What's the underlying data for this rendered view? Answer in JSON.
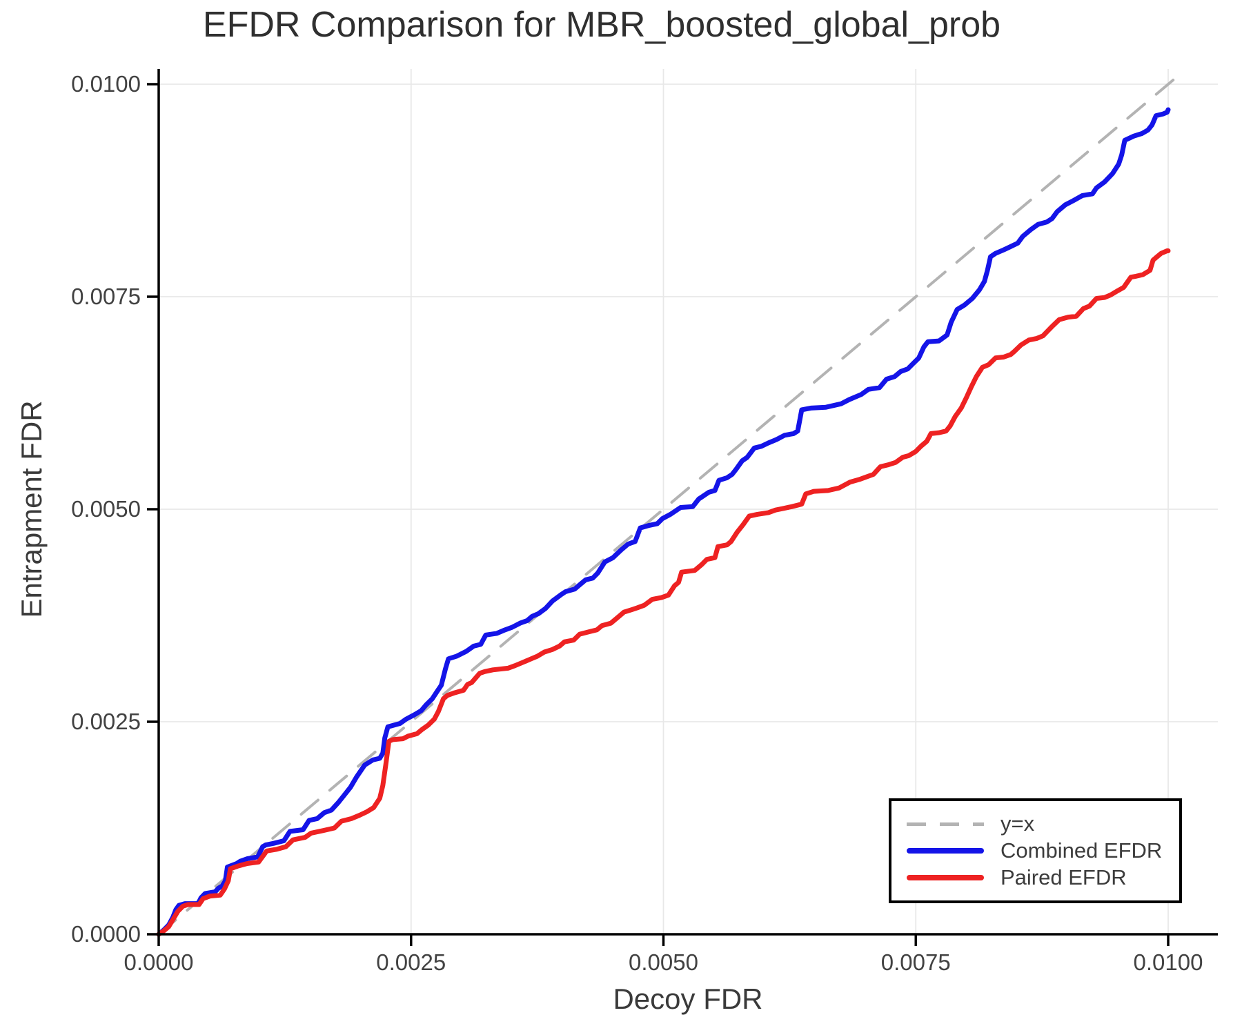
{
  "chart_data": {
    "type": "line",
    "title": "EFDR Comparison for MBR_boosted_global_prob",
    "xlabel": "Decoy FDR",
    "ylabel": "Entrapment FDR",
    "xlim": [
      0,
      0.0105
    ],
    "ylim": [
      0,
      0.0102
    ],
    "grid": true,
    "unit_scale": 0.0001,
    "x_ticks": {
      "values": [
        0,
        0.0025,
        0.005,
        0.0075,
        0.01
      ],
      "labels": [
        "0.0000",
        "0.0025",
        "0.0050",
        "0.0075",
        "0.0100"
      ]
    },
    "y_ticks": {
      "values": [
        0,
        0.0025,
        0.005,
        0.0075,
        0.01
      ],
      "labels": [
        "0.0000",
        "0.0025",
        "0.0050",
        "0.0075",
        "0.0100"
      ]
    },
    "legend": {
      "position": "bottom-right",
      "entries": [
        {
          "label": "y=x",
          "color": "#b3b3b3",
          "dash": true
        },
        {
          "label": "Combined EFDR",
          "color": "#1414e8",
          "dash": false
        },
        {
          "label": "Paired EFDR",
          "color": "#ee2222",
          "dash": false
        }
      ]
    },
    "series": [
      {
        "name": "y=x",
        "color": "#b3b3b3",
        "dash": true,
        "width": 4,
        "points": [
          [
            0,
            0
          ],
          [
            101.4,
            101.4
          ]
        ]
      },
      {
        "name": "Combined EFDR",
        "color": "#1414e8",
        "dash": false,
        "width": 7,
        "points": [
          [
            0,
            0
          ],
          [
            0.5,
            0.5
          ],
          [
            1,
            1.1
          ],
          [
            1.4,
            2
          ],
          [
            1.7,
            2.9
          ],
          [
            2,
            3.4
          ],
          [
            2.6,
            3.6
          ],
          [
            3.9,
            3.6
          ],
          [
            4.2,
            4.3
          ],
          [
            4.6,
            4.8
          ],
          [
            5.6,
            5
          ],
          [
            5.9,
            5.4
          ],
          [
            6.3,
            5.7
          ],
          [
            6.6,
            6.3
          ],
          [
            6.8,
            7.9
          ],
          [
            7.7,
            8.3
          ],
          [
            8.1,
            8.6
          ],
          [
            8.8,
            8.9
          ],
          [
            9.8,
            9.1
          ],
          [
            10.3,
            10.3
          ],
          [
            10.6,
            10.5
          ],
          [
            11.4,
            10.7
          ],
          [
            12.4,
            11
          ],
          [
            13,
            12.1
          ],
          [
            14.3,
            12.3
          ],
          [
            14.9,
            13.4
          ],
          [
            15.7,
            13.6
          ],
          [
            16.4,
            14.3
          ],
          [
            17.1,
            14.6
          ],
          [
            17.8,
            15.5
          ],
          [
            18.4,
            16.4
          ],
          [
            19,
            17.3
          ],
          [
            19.6,
            18.5
          ],
          [
            20.4,
            19.9
          ],
          [
            21.2,
            20.5
          ],
          [
            21.9,
            20.7
          ],
          [
            22.2,
            21.3
          ],
          [
            22.4,
            23.1
          ],
          [
            22.7,
            24.4
          ],
          [
            23.9,
            24.8
          ],
          [
            24.5,
            25.3
          ],
          [
            25.3,
            25.8
          ],
          [
            26,
            26.3
          ],
          [
            26.5,
            27
          ],
          [
            27.1,
            27.7
          ],
          [
            27.6,
            28.6
          ],
          [
            28,
            29.3
          ],
          [
            28.4,
            31.2
          ],
          [
            28.7,
            32.4
          ],
          [
            29.5,
            32.7
          ],
          [
            30.5,
            33.3
          ],
          [
            31.2,
            33.9
          ],
          [
            31.9,
            34.1
          ],
          [
            32.4,
            35.2
          ],
          [
            33.5,
            35.4
          ],
          [
            34.3,
            35.8
          ],
          [
            35,
            36.1
          ],
          [
            35.8,
            36.6
          ],
          [
            36.5,
            36.9
          ],
          [
            37,
            37.4
          ],
          [
            37.6,
            37.7
          ],
          [
            38.3,
            38.3
          ],
          [
            39,
            39.2
          ],
          [
            39.8,
            39.9
          ],
          [
            40.3,
            40.3
          ],
          [
            41.2,
            40.6
          ],
          [
            41.7,
            41.1
          ],
          [
            42.3,
            41.7
          ],
          [
            43,
            41.9
          ],
          [
            43.5,
            42.5
          ],
          [
            44.2,
            43.8
          ],
          [
            45,
            44.3
          ],
          [
            45.8,
            45.2
          ],
          [
            46.5,
            45.9
          ],
          [
            47.2,
            46.2
          ],
          [
            47.7,
            47.8
          ],
          [
            48.6,
            48.1
          ],
          [
            49.4,
            48.3
          ],
          [
            49.9,
            48.9
          ],
          [
            50.7,
            49.4
          ],
          [
            51.7,
            50.2
          ],
          [
            52.9,
            50.3
          ],
          [
            53.5,
            51.2
          ],
          [
            54.5,
            52
          ],
          [
            55.1,
            52.2
          ],
          [
            55.5,
            53.4
          ],
          [
            56.3,
            53.7
          ],
          [
            56.8,
            54.1
          ],
          [
            57.2,
            54.7
          ],
          [
            57.8,
            55.7
          ],
          [
            58.3,
            56.1
          ],
          [
            59,
            57.2
          ],
          [
            59.7,
            57.4
          ],
          [
            60.4,
            57.8
          ],
          [
            61.2,
            58.2
          ],
          [
            62,
            58.7
          ],
          [
            62.9,
            58.9
          ],
          [
            63.3,
            59.2
          ],
          [
            63.7,
            61.7
          ],
          [
            64.6,
            61.9
          ],
          [
            66.1,
            62
          ],
          [
            67.6,
            62.4
          ],
          [
            68.4,
            62.9
          ],
          [
            69.6,
            63.5
          ],
          [
            70.3,
            64.1
          ],
          [
            71.4,
            64.3
          ],
          [
            72.1,
            65.3
          ],
          [
            72.9,
            65.6
          ],
          [
            73.5,
            66.2
          ],
          [
            74.2,
            66.5
          ],
          [
            74.7,
            67.1
          ],
          [
            75.3,
            67.8
          ],
          [
            75.8,
            69.1
          ],
          [
            76.2,
            69.7
          ],
          [
            77.3,
            69.8
          ],
          [
            78.1,
            70.5
          ],
          [
            78.5,
            72
          ],
          [
            79.1,
            73.5
          ],
          [
            79.8,
            74
          ],
          [
            80.6,
            74.8
          ],
          [
            81.3,
            75.8
          ],
          [
            81.8,
            76.8
          ],
          [
            82.1,
            78.1
          ],
          [
            82.4,
            79.7
          ],
          [
            82.9,
            80.1
          ],
          [
            83.7,
            80.5
          ],
          [
            84.4,
            80.9
          ],
          [
            85.1,
            81.3
          ],
          [
            85.6,
            82.1
          ],
          [
            86.4,
            82.9
          ],
          [
            87.1,
            83.5
          ],
          [
            88,
            83.8
          ],
          [
            88.5,
            84.2
          ],
          [
            89,
            85
          ],
          [
            89.8,
            85.8
          ],
          [
            90.6,
            86.3
          ],
          [
            91.5,
            86.9
          ],
          [
            92.5,
            87.1
          ],
          [
            92.9,
            87.8
          ],
          [
            93.7,
            88.5
          ],
          [
            94.5,
            89.5
          ],
          [
            95.1,
            90.6
          ],
          [
            95.4,
            91.7
          ],
          [
            95.7,
            93.4
          ],
          [
            96.6,
            93.9
          ],
          [
            97.4,
            94.2
          ],
          [
            98,
            94.6
          ],
          [
            98.4,
            95.2
          ],
          [
            98.8,
            96.3
          ],
          [
            99.5,
            96.5
          ],
          [
            99.9,
            96.7
          ],
          [
            100,
            97
          ]
        ]
      },
      {
        "name": "Paired EFDR",
        "color": "#ee2222",
        "dash": false,
        "width": 7,
        "points": [
          [
            0,
            0
          ],
          [
            0.5,
            0.4
          ],
          [
            1,
            0.9
          ],
          [
            1.5,
            1.9
          ],
          [
            1.9,
            2.7
          ],
          [
            2.4,
            3.3
          ],
          [
            2.9,
            3.5
          ],
          [
            4,
            3.5
          ],
          [
            4.4,
            4.2
          ],
          [
            5.1,
            4.5
          ],
          [
            6.1,
            4.6
          ],
          [
            6.5,
            5.3
          ],
          [
            6.9,
            6.3
          ],
          [
            7.1,
            7.7
          ],
          [
            7.8,
            8
          ],
          [
            8.7,
            8.3
          ],
          [
            9.9,
            8.5
          ],
          [
            10.7,
            9.8
          ],
          [
            11.7,
            10
          ],
          [
            12.6,
            10.3
          ],
          [
            13.3,
            11.1
          ],
          [
            14.5,
            11.4
          ],
          [
            15.1,
            11.9
          ],
          [
            16.3,
            12.2
          ],
          [
            17.4,
            12.5
          ],
          [
            18.1,
            13.3
          ],
          [
            19.1,
            13.6
          ],
          [
            19.9,
            14
          ],
          [
            20.6,
            14.4
          ],
          [
            21.3,
            14.9
          ],
          [
            21.9,
            16
          ],
          [
            22.2,
            17.5
          ],
          [
            22.5,
            20
          ],
          [
            22.8,
            22.7
          ],
          [
            23.2,
            22.9
          ],
          [
            24.2,
            23
          ],
          [
            24.7,
            23.3
          ],
          [
            25.6,
            23.6
          ],
          [
            26.1,
            24.1
          ],
          [
            26.7,
            24.6
          ],
          [
            27.3,
            25.3
          ],
          [
            27.7,
            26.2
          ],
          [
            28.2,
            27.7
          ],
          [
            28.6,
            28.1
          ],
          [
            29.3,
            28.4
          ],
          [
            30.2,
            28.7
          ],
          [
            30.6,
            29.4
          ],
          [
            31,
            29.6
          ],
          [
            31.8,
            30.7
          ],
          [
            32.3,
            30.9
          ],
          [
            33.1,
            31.1
          ],
          [
            34.6,
            31.3
          ],
          [
            35.3,
            31.6
          ],
          [
            36.1,
            32
          ],
          [
            36.9,
            32.4
          ],
          [
            37.5,
            32.7
          ],
          [
            38.2,
            33.2
          ],
          [
            39,
            33.5
          ],
          [
            39.7,
            33.9
          ],
          [
            40.2,
            34.4
          ],
          [
            41.1,
            34.6
          ],
          [
            41.7,
            35.3
          ],
          [
            42.7,
            35.6
          ],
          [
            43.4,
            35.8
          ],
          [
            43.9,
            36.3
          ],
          [
            44.8,
            36.6
          ],
          [
            45.4,
            37.2
          ],
          [
            46.1,
            37.9
          ],
          [
            46.9,
            38.2
          ],
          [
            47.4,
            38.4
          ],
          [
            48.1,
            38.7
          ],
          [
            48.9,
            39.4
          ],
          [
            49.8,
            39.6
          ],
          [
            50.5,
            39.9
          ],
          [
            51.1,
            41
          ],
          [
            51.5,
            41.4
          ],
          [
            51.8,
            42.6
          ],
          [
            53.1,
            42.8
          ],
          [
            53.8,
            43.5
          ],
          [
            54.3,
            44.1
          ],
          [
            55.1,
            44.3
          ],
          [
            55.4,
            45.6
          ],
          [
            56.3,
            45.8
          ],
          [
            56.7,
            46.2
          ],
          [
            57.3,
            47.3
          ],
          [
            57.9,
            48.2
          ],
          [
            58.5,
            49.2
          ],
          [
            59.3,
            49.4
          ],
          [
            60.4,
            49.6
          ],
          [
            61.1,
            49.9
          ],
          [
            61.9,
            50.1
          ],
          [
            62.7,
            50.3
          ],
          [
            63.7,
            50.6
          ],
          [
            64.1,
            51.8
          ],
          [
            64.9,
            52.1
          ],
          [
            66.3,
            52.2
          ],
          [
            67.4,
            52.5
          ],
          [
            68.5,
            53.2
          ],
          [
            69.4,
            53.5
          ],
          [
            70.1,
            53.8
          ],
          [
            70.8,
            54.1
          ],
          [
            71.5,
            55
          ],
          [
            72.2,
            55.2
          ],
          [
            73,
            55.5
          ],
          [
            73.7,
            56.1
          ],
          [
            74.3,
            56.3
          ],
          [
            75,
            56.8
          ],
          [
            75.5,
            57.4
          ],
          [
            76.1,
            58
          ],
          [
            76.5,
            58.9
          ],
          [
            77.3,
            59
          ],
          [
            78,
            59.2
          ],
          [
            78.4,
            59.8
          ],
          [
            78.9,
            60.9
          ],
          [
            79.5,
            61.9
          ],
          [
            80,
            63.1
          ],
          [
            80.5,
            64.4
          ],
          [
            81,
            65.6
          ],
          [
            81.6,
            66.7
          ],
          [
            82.2,
            67
          ],
          [
            82.9,
            67.8
          ],
          [
            83.7,
            67.9
          ],
          [
            84.4,
            68.2
          ],
          [
            84.8,
            68.6
          ],
          [
            85.4,
            69.3
          ],
          [
            86.2,
            69.9
          ],
          [
            87,
            70.1
          ],
          [
            87.6,
            70.4
          ],
          [
            88.5,
            71.5
          ],
          [
            89.2,
            72.3
          ],
          [
            90.1,
            72.6
          ],
          [
            90.9,
            72.7
          ],
          [
            91.6,
            73.6
          ],
          [
            92.2,
            73.9
          ],
          [
            92.9,
            74.8
          ],
          [
            93.7,
            74.9
          ],
          [
            94.3,
            75.2
          ],
          [
            95,
            75.7
          ],
          [
            95.6,
            76.1
          ],
          [
            96.3,
            77.3
          ],
          [
            96.8,
            77.4
          ],
          [
            97.5,
            77.6
          ],
          [
            98.2,
            78.1
          ],
          [
            98.5,
            79.3
          ],
          [
            98.9,
            79.7
          ],
          [
            99.3,
            80.1
          ],
          [
            99.9,
            80.4
          ],
          [
            100,
            80.4
          ]
        ]
      }
    ],
    "style": {
      "background": "#ffffff",
      "grid_color": "#e8e8e8",
      "spine_color": "#000000",
      "tick_label_color": "#424242",
      "axis_title_color": "#3a3a3a",
      "title_color": "#2f2f2f"
    }
  }
}
